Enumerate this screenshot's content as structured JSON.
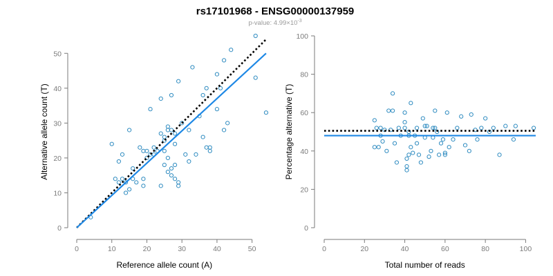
{
  "header": {
    "title": "rs17101968 - ENSG00000137959",
    "subtitle_prefix": "p-value: 4.99×10",
    "subtitle_exp": "-3"
  },
  "colors": {
    "points": "#2e8bc0",
    "fit": "#1e88e5",
    "reference": "#000000"
  },
  "chart_data": [
    {
      "type": "scatter",
      "xlabel": "Reference allele count (A)",
      "ylabel": "Alternative allele count (T)",
      "xlim": [
        0,
        55
      ],
      "ylim": [
        0,
        55
      ],
      "xticks": [
        0,
        10,
        20,
        30,
        40,
        50
      ],
      "yticks": [
        0,
        10,
        20,
        30,
        40,
        50
      ],
      "fit_line": {
        "x": [
          0,
          54
        ],
        "y": [
          0,
          50
        ],
        "style": "solid"
      },
      "reference_line": {
        "x": [
          0,
          54
        ],
        "y": [
          0,
          54
        ],
        "style": "dotted"
      },
      "points": [
        [
          4,
          3
        ],
        [
          10,
          24
        ],
        [
          11,
          14
        ],
        [
          12,
          19
        ],
        [
          12,
          13
        ],
        [
          13,
          14
        ],
        [
          13,
          21
        ],
        [
          14,
          13
        ],
        [
          14,
          10
        ],
        [
          15,
          11
        ],
        [
          15,
          28
        ],
        [
          16,
          17
        ],
        [
          16,
          14
        ],
        [
          17,
          13
        ],
        [
          18,
          23
        ],
        [
          19,
          14
        ],
        [
          19,
          12
        ],
        [
          19,
          22
        ],
        [
          20,
          22
        ],
        [
          20,
          20
        ],
        [
          21,
          34
        ],
        [
          21,
          21
        ],
        [
          22,
          21
        ],
        [
          22,
          23
        ],
        [
          23,
          22
        ],
        [
          24,
          37
        ],
        [
          24,
          27
        ],
        [
          24,
          12
        ],
        [
          25,
          18
        ],
        [
          25,
          22
        ],
        [
          25,
          25
        ],
        [
          25,
          26
        ],
        [
          26,
          29
        ],
        [
          26,
          28
        ],
        [
          26,
          16
        ],
        [
          26,
          20
        ],
        [
          27,
          38
        ],
        [
          27,
          28
        ],
        [
          27,
          17
        ],
        [
          27,
          15
        ],
        [
          28,
          27
        ],
        [
          28,
          24
        ],
        [
          28,
          18
        ],
        [
          28,
          14
        ],
        [
          29,
          42
        ],
        [
          29,
          13
        ],
        [
          29,
          12
        ],
        [
          30,
          30
        ],
        [
          31,
          21
        ],
        [
          32,
          19
        ],
        [
          32,
          28
        ],
        [
          33,
          46
        ],
        [
          34,
          21
        ],
        [
          35,
          32
        ],
        [
          36,
          38
        ],
        [
          36,
          26
        ],
        [
          37,
          23
        ],
        [
          37,
          40
        ],
        [
          38,
          22
        ],
        [
          38,
          23
        ],
        [
          40,
          44
        ],
        [
          40,
          34
        ],
        [
          41,
          40
        ],
        [
          42,
          48
        ],
        [
          42,
          28
        ],
        [
          43,
          30
        ],
        [
          44,
          51
        ],
        [
          51,
          55
        ],
        [
          51,
          43
        ],
        [
          54,
          33
        ]
      ]
    },
    {
      "type": "scatter",
      "xlabel": "Total number of reads",
      "ylabel": "Percentage alternative (T)",
      "xlim": [
        0,
        105
      ],
      "ylim": [
        0,
        100
      ],
      "xticks": [
        0,
        20,
        40,
        60,
        80,
        100
      ],
      "yticks": [
        0,
        20,
        40,
        60,
        80,
        100
      ],
      "fit_line": {
        "x": [
          0,
          105
        ],
        "y": [
          48,
          48
        ],
        "style": "solid"
      },
      "reference_line": {
        "x": [
          0,
          105
        ],
        "y": [
          50.5,
          50.5
        ],
        "style": "dotted"
      },
      "points": [
        [
          25,
          42
        ],
        [
          25,
          56
        ],
        [
          26,
          52
        ],
        [
          27,
          42
        ],
        [
          28,
          48
        ],
        [
          28,
          52
        ],
        [
          29,
          45
        ],
        [
          30,
          51
        ],
        [
          31,
          40
        ],
        [
          32,
          61
        ],
        [
          33,
          51
        ],
        [
          34,
          61
        ],
        [
          34,
          70
        ],
        [
          35,
          44
        ],
        [
          36,
          34
        ],
        [
          37,
          52
        ],
        [
          38,
          48
        ],
        [
          40,
          60
        ],
        [
          40,
          55
        ],
        [
          40,
          52
        ],
        [
          41,
          30
        ],
        [
          41,
          32
        ],
        [
          41,
          36
        ],
        [
          42,
          38
        ],
        [
          42,
          50
        ],
        [
          42,
          48
        ],
        [
          43,
          65
        ],
        [
          43,
          42
        ],
        [
          44,
          39
        ],
        [
          45,
          48
        ],
        [
          46,
          52
        ],
        [
          46,
          44
        ],
        [
          47,
          38
        ],
        [
          48,
          34
        ],
        [
          49,
          57
        ],
        [
          50,
          47
        ],
        [
          50,
          53
        ],
        [
          51,
          53
        ],
        [
          52,
          37
        ],
        [
          53,
          40
        ],
        [
          54,
          52
        ],
        [
          54,
          47
        ],
        [
          55,
          61
        ],
        [
          55,
          52
        ],
        [
          56,
          50
        ],
        [
          57,
          38
        ],
        [
          58,
          44
        ],
        [
          59,
          46
        ],
        [
          60,
          39
        ],
        [
          60,
          38
        ],
        [
          61,
          60
        ],
        [
          62,
          42
        ],
        [
          64,
          46
        ],
        [
          66,
          52
        ],
        [
          68,
          58
        ],
        [
          70,
          43
        ],
        [
          72,
          40
        ],
        [
          73,
          59
        ],
        [
          75,
          51
        ],
        [
          76,
          46
        ],
        [
          78,
          52
        ],
        [
          80,
          57
        ],
        [
          82,
          50
        ],
        [
          84,
          52
        ],
        [
          87,
          38
        ],
        [
          90,
          53
        ],
        [
          94,
          46
        ],
        [
          95,
          53
        ],
        [
          104,
          52
        ]
      ]
    }
  ]
}
